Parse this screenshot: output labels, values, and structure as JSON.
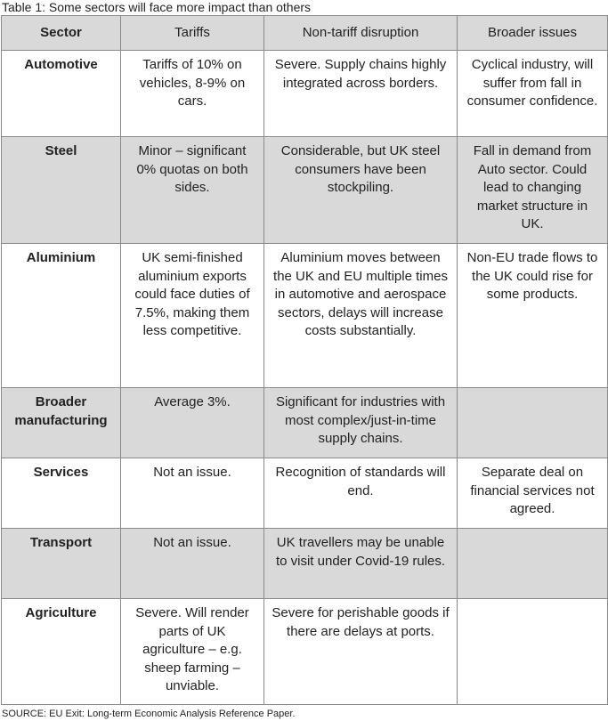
{
  "title": "Table 1: Some sectors will face more impact than others",
  "table": {
    "header": [
      "Sector",
      "Tariffs",
      "Non-tariff disruption",
      "Broader issues"
    ],
    "rows": [
      [
        "Automotive",
        "Tariffs of 10% on vehicles, 8-9% on cars.",
        "Severe. Supply chains highly integrated across borders.",
        "Cyclical industry, will suffer from fall in consumer confidence."
      ],
      [
        "Steel",
        "Minor – significant 0% quotas on both sides.",
        "Considerable, but UK steel consumers have been stockpiling.",
        "Fall in demand from Auto sector. Could lead to changing market structure in UK."
      ],
      [
        "Aluminium",
        "UK semi-finished aluminium exports could face duties of 7.5%, making them less competitive.",
        "Aluminium moves between the UK and EU multiple times in automotive and aerospace sectors, delays will increase costs substantially.",
        "Non-EU trade flows to the UK could rise for some products."
      ],
      [
        "Broader manufacturing",
        "Average 3%.",
        "Significant for industries with most complex/just-in-time supply chains.",
        null
      ],
      [
        "Services",
        "Not an issue.",
        "Recognition of standards will end.",
        "Separate deal on financial services not agreed."
      ],
      [
        "Transport",
        "Not an issue.",
        "UK travellers may be unable to visit under Covid-19 rules.",
        null
      ],
      [
        "Agriculture",
        "Severe. Will render parts of UK agriculture – e.g. sheep farming – unviable.",
        "Severe for perishable goods if there are delays at ports.",
        null
      ]
    ]
  },
  "source": "SOURCE: EU Exit: Long-term Economic Analysis Reference Paper."
}
